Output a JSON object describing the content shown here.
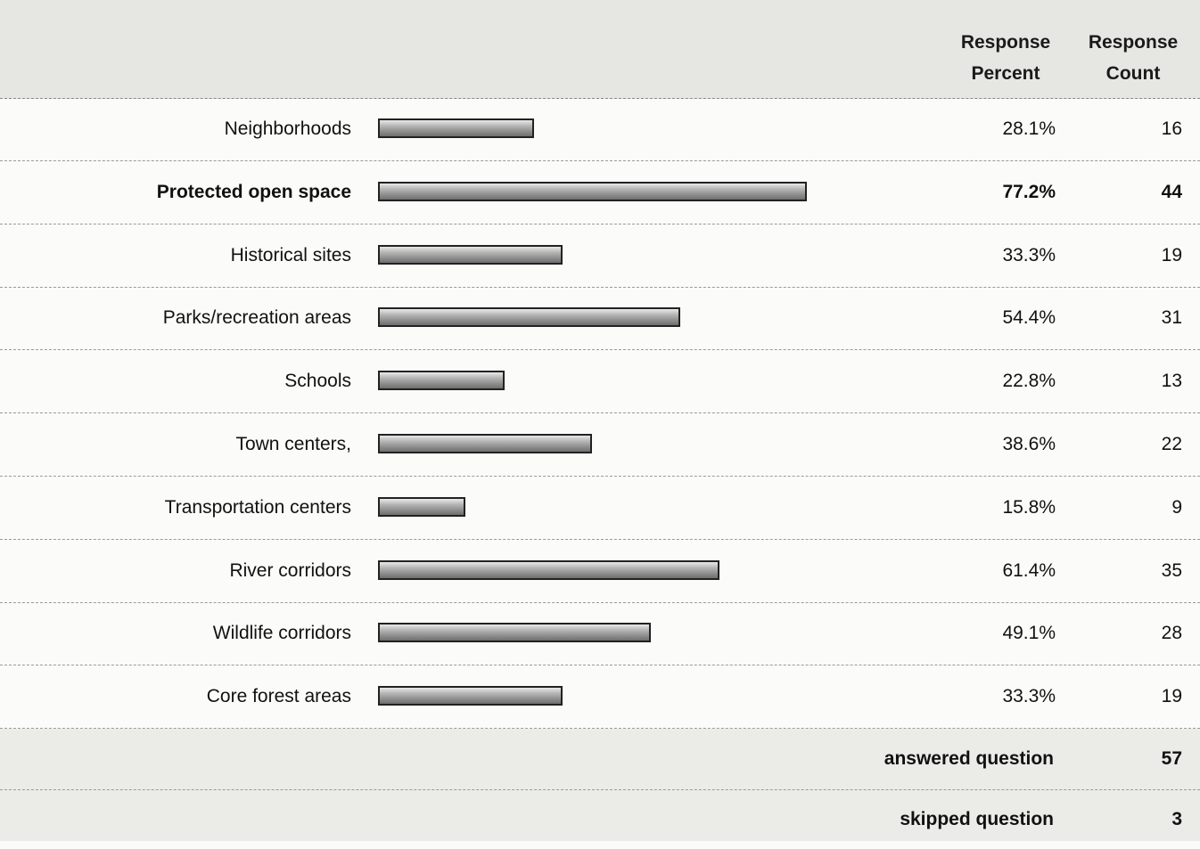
{
  "header": {
    "percent_line1": "Response",
    "percent_line2": "Percent",
    "count_line1": "Response",
    "count_line2": "Count"
  },
  "chart_data": {
    "type": "bar",
    "orientation": "horizontal",
    "bar_color": "#9a9a9a",
    "categories": [
      "Neighborhoods",
      "Protected open space",
      "Historical sites",
      "Parks/recreation areas",
      "Schools",
      "Town centers,",
      "Transportation centers",
      "River corridors",
      "Wildlife corridors",
      "Core forest areas"
    ],
    "values": [
      28.1,
      77.2,
      33.3,
      54.4,
      22.8,
      38.6,
      15.8,
      61.4,
      49.1,
      33.3
    ],
    "percent_labels": [
      "28.1%",
      "77.2%",
      "33.3%",
      "54.4%",
      "22.8%",
      "38.6%",
      "15.8%",
      "61.4%",
      "49.1%",
      "33.3%"
    ],
    "counts": [
      "16",
      "44",
      "19",
      "31",
      "13",
      "22",
      "9",
      "35",
      "28",
      "19"
    ],
    "highlighted_index": 1,
    "xlim": [
      0,
      100
    ]
  },
  "summary": {
    "answered_label": "answered question",
    "answered_value": "57",
    "skipped_label": "skipped question",
    "skipped_value": "3"
  }
}
